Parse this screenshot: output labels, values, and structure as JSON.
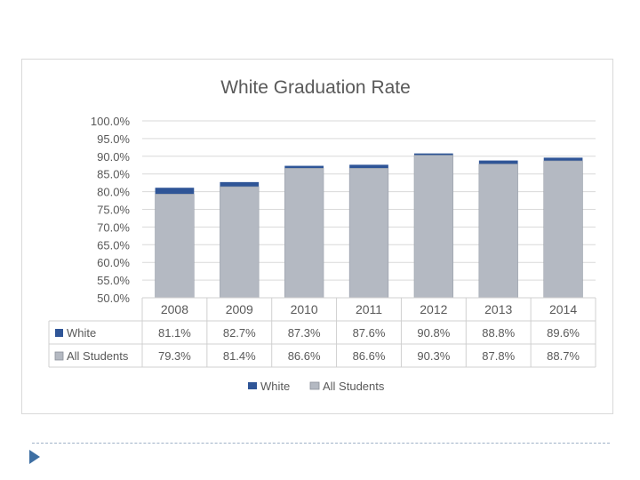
{
  "chart_data": {
    "type": "bar",
    "title": "White Graduation Rate",
    "categories": [
      "2008",
      "2009",
      "2010",
      "2011",
      "2012",
      "2013",
      "2014"
    ],
    "series": [
      {
        "name": "White",
        "color": "#2f5597",
        "values": [
          81.1,
          82.7,
          87.3,
          87.6,
          90.8,
          88.8,
          89.6
        ],
        "labels": [
          "81.1%",
          "82.7%",
          "87.3%",
          "87.6%",
          "90.8%",
          "88.8%",
          "89.6%"
        ]
      },
      {
        "name": "All Students",
        "color": "#b4b9c2",
        "values": [
          79.3,
          81.4,
          86.6,
          86.6,
          90.3,
          87.8,
          88.7
        ],
        "labels": [
          "79.3%",
          "81.4%",
          "86.6%",
          "86.6%",
          "90.3%",
          "87.8%",
          "88.7%"
        ]
      }
    ],
    "ylim": [
      50,
      100
    ],
    "yticks": [
      "50.0%",
      "55.0%",
      "60.0%",
      "65.0%",
      "70.0%",
      "75.0%",
      "80.0%",
      "85.0%",
      "90.0%",
      "95.0%",
      "100.0%"
    ],
    "grid": true,
    "legend": "bottom",
    "data_table": true
  }
}
